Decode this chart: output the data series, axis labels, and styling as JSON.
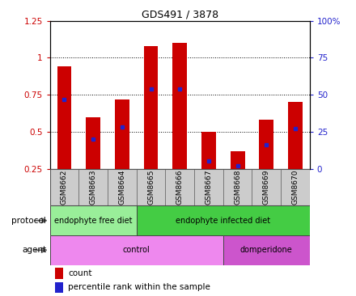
{
  "title": "GDS491 / 3878",
  "samples": [
    "GSM8662",
    "GSM8663",
    "GSM8664",
    "GSM8665",
    "GSM8666",
    "GSM8667",
    "GSM8668",
    "GSM8669",
    "GSM8670"
  ],
  "bar_heights": [
    0.94,
    0.6,
    0.72,
    1.08,
    1.1,
    0.5,
    0.37,
    0.58,
    0.7
  ],
  "blue_markers": [
    0.72,
    0.45,
    0.53,
    0.79,
    0.79,
    0.3,
    0.27,
    0.41,
    0.52
  ],
  "ylim_left": [
    0.25,
    1.25
  ],
  "ylim_right": [
    0,
    100
  ],
  "yticks_left": [
    0.25,
    0.5,
    0.75,
    1.0,
    1.25
  ],
  "yticks_right": [
    0,
    25,
    50,
    75,
    100
  ],
  "ytick_labels_left": [
    "0.25",
    "0.5",
    "0.75",
    "1",
    "1.25"
  ],
  "ytick_labels_right": [
    "0",
    "25",
    "50",
    "75",
    "100%"
  ],
  "bar_color": "#cc0000",
  "marker_color": "#2222cc",
  "plot_bg": "#ffffff",
  "grid_color": "#000000",
  "title_color": "#000000",
  "protocol_groups": [
    {
      "label": "endophyte free diet",
      "start": 0,
      "end": 3,
      "color": "#99ee99"
    },
    {
      "label": "endophyte infected diet",
      "start": 3,
      "end": 9,
      "color": "#44cc44"
    }
  ],
  "agent_groups": [
    {
      "label": "control",
      "start": 0,
      "end": 6,
      "color": "#ee88ee"
    },
    {
      "label": "domperidone",
      "start": 6,
      "end": 9,
      "color": "#cc55cc"
    }
  ],
  "protocol_label": "protocol",
  "agent_label": "agent",
  "legend_count": "count",
  "legend_percentile": "percentile rank within the sample",
  "sample_bg_color": "#cccccc",
  "left_axis_color": "#cc0000",
  "right_axis_color": "#2222cc",
  "bar_width": 0.5
}
